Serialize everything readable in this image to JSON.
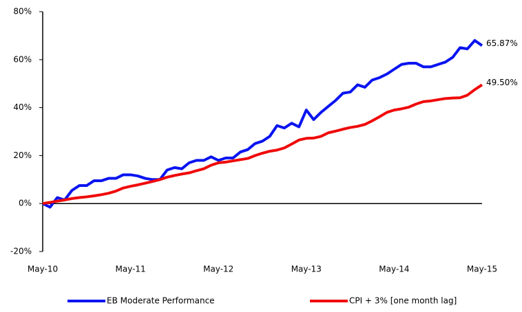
{
  "chart_data": {
    "type": "line",
    "categories": [
      "May-10",
      null,
      null,
      null,
      null,
      null,
      null,
      null,
      null,
      null,
      null,
      null,
      "May-11",
      null,
      null,
      null,
      null,
      null,
      null,
      null,
      null,
      null,
      null,
      null,
      "May-12",
      null,
      null,
      null,
      null,
      null,
      null,
      null,
      null,
      null,
      null,
      null,
      "May-13",
      null,
      null,
      null,
      null,
      null,
      null,
      null,
      null,
      null,
      null,
      null,
      "May-14",
      null,
      null,
      null,
      null,
      null,
      null,
      null,
      null,
      null,
      null,
      null,
      "May-15"
    ],
    "series": [
      {
        "name": "EB Moderate Performance",
        "color": "#0a14f0",
        "values": [
          0,
          -1.5,
          2.5,
          1.5,
          5.5,
          7.5,
          7.5,
          9.5,
          9.5,
          10.5,
          10.5,
          12,
          12,
          11.5,
          10.5,
          10,
          10,
          14,
          15,
          14.5,
          17,
          18,
          18,
          19.5,
          18,
          19,
          19,
          21.5,
          22.5,
          25,
          26,
          28,
          32.5,
          31.5,
          33.5,
          32,
          39,
          35,
          38,
          40.5,
          43,
          46,
          46.5,
          49.5,
          48.5,
          51.5,
          52.5,
          54,
          56,
          58,
          58.5,
          58.5,
          57,
          57,
          58,
          59,
          61,
          65,
          64.5,
          68,
          65.87
        ],
        "value_labels": [
          null,
          null,
          null,
          null,
          null,
          null,
          null,
          null,
          null,
          null,
          null,
          null,
          null,
          null,
          null,
          null,
          null,
          null,
          null,
          null,
          null,
          null,
          null,
          null,
          null,
          null,
          null,
          null,
          null,
          null,
          null,
          null,
          null,
          null,
          null,
          null,
          null,
          null,
          null,
          null,
          null,
          null,
          null,
          null,
          null,
          null,
          null,
          null,
          null,
          null,
          null,
          null,
          null,
          null,
          null,
          null,
          null,
          null,
          null,
          null,
          "65.87%"
        ]
      },
      {
        "name": "CPI + 3% [one month lag]",
        "color": "#f00a0a",
        "values": [
          0,
          0.5,
          1,
          1.5,
          2.1,
          2.5,
          2.8,
          3.2,
          3.7,
          4.3,
          5.2,
          6.5,
          7.2,
          7.8,
          8.5,
          9.2,
          10,
          11,
          11.7,
          12.3,
          12.8,
          13.7,
          14.5,
          16,
          17,
          17.3,
          17.8,
          18.3,
          18.8,
          20,
          21,
          21.8,
          22.3,
          23.2,
          24.8,
          26.5,
          27.2,
          27.3,
          28,
          29.5,
          30.2,
          31,
          31.7,
          32.2,
          33,
          34.5,
          36.2,
          38,
          39,
          39.5,
          40.2,
          41.5,
          42.5,
          42.8,
          43.3,
          43.8,
          44,
          44.1,
          45.2,
          47.5,
          49.5
        ],
        "value_labels": [
          null,
          null,
          null,
          null,
          null,
          null,
          null,
          null,
          null,
          null,
          null,
          null,
          null,
          null,
          null,
          null,
          null,
          null,
          null,
          null,
          null,
          null,
          null,
          null,
          null,
          null,
          null,
          null,
          null,
          null,
          null,
          null,
          null,
          null,
          null,
          null,
          null,
          null,
          null,
          null,
          null,
          null,
          null,
          null,
          null,
          null,
          null,
          null,
          null,
          null,
          null,
          null,
          null,
          null,
          null,
          null,
          null,
          null,
          null,
          null,
          "49.50%"
        ]
      }
    ],
    "ylim": [
      -20,
      80
    ],
    "yticks": [
      {
        "value": -20,
        "label": "-20%"
      },
      {
        "value": 0,
        "label": "0%"
      },
      {
        "value": 20,
        "label": "20%"
      },
      {
        "value": 40,
        "label": "40%"
      },
      {
        "value": 60,
        "label": "60%"
      },
      {
        "value": 80,
        "label": "80%"
      }
    ],
    "grid": false,
    "legend": "bottom"
  }
}
